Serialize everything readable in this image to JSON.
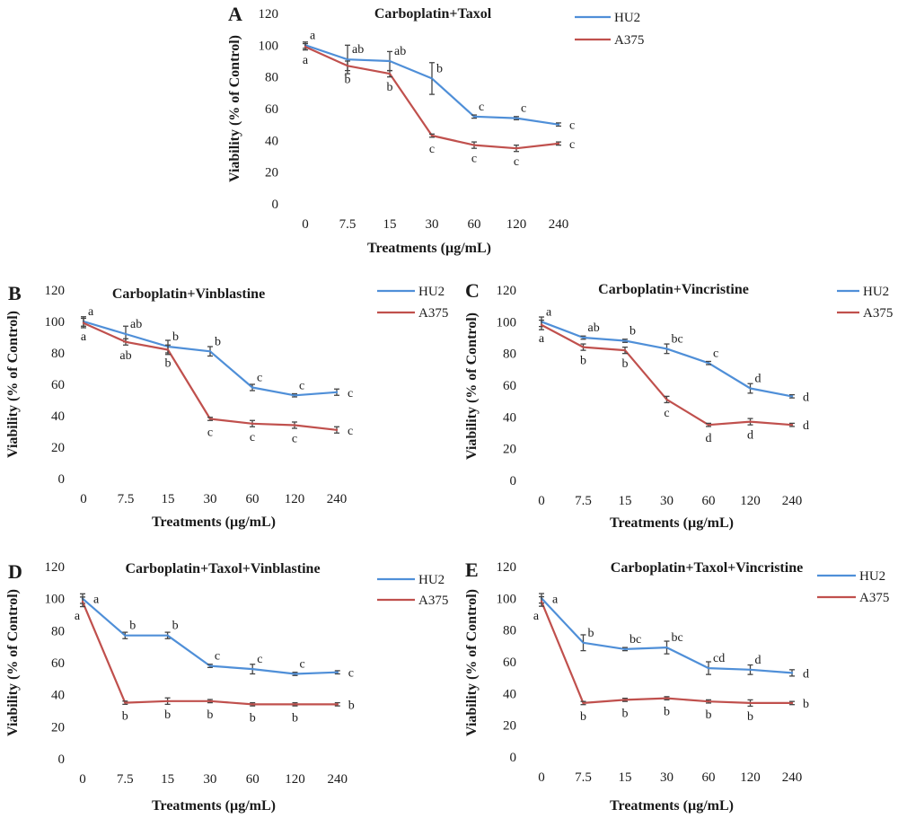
{
  "chart_data": [
    {
      "panel": "A",
      "type": "line",
      "title": "Carboplatin+Taxol",
      "xlabel": "Treatments (µg/mL)",
      "ylabel": "Viability (% of Control)",
      "categories": [
        "0",
        "7.5",
        "15",
        "30",
        "60",
        "120",
        "240"
      ],
      "ylim": [
        0,
        120
      ],
      "yticks": [
        0,
        20,
        40,
        60,
        80,
        100,
        120
      ],
      "grid": false,
      "legend": "top-right",
      "series": [
        {
          "name": "HU2",
          "color": "#4f8fd8",
          "values": [
            100,
            91,
            90,
            79,
            55,
            54,
            50
          ],
          "errors": [
            2,
            9,
            6,
            10,
            1,
            1,
            1
          ],
          "letters": [
            "a",
            "ab",
            "ab",
            "b",
            "c",
            "c",
            "c"
          ]
        },
        {
          "name": "A375",
          "color": "#c0504d",
          "values": [
            99,
            87,
            82,
            43,
            37,
            35,
            38
          ],
          "errors": [
            2,
            3,
            2,
            1,
            2,
            2,
            1
          ],
          "letters": [
            "a",
            "b",
            "b",
            "c",
            "c",
            "c",
            "c"
          ]
        }
      ]
    },
    {
      "panel": "B",
      "type": "line",
      "title": "Carboplatin+Vinblastine",
      "xlabel": "Treatments (µg/mL)",
      "ylabel": "Viability (% of Control)",
      "categories": [
        "0",
        "7.5",
        "15",
        "30",
        "60",
        "120",
        "240"
      ],
      "ylim": [
        0,
        120
      ],
      "yticks": [
        0,
        20,
        40,
        60,
        80,
        100,
        120
      ],
      "grid": false,
      "legend": "top-right",
      "series": [
        {
          "name": "HU2",
          "color": "#4f8fd8",
          "values": [
            100,
            92,
            84,
            81,
            58,
            53,
            55
          ],
          "errors": [
            3,
            5,
            4,
            3,
            2,
            1,
            2
          ],
          "letters": [
            "a",
            "ab",
            "b",
            "b",
            "c",
            "c",
            "c"
          ]
        },
        {
          "name": "A375",
          "color": "#c0504d",
          "values": [
            99,
            87,
            82,
            38,
            35,
            34,
            31
          ],
          "errors": [
            3,
            2,
            3,
            1,
            2,
            2,
            2
          ],
          "letters": [
            "a",
            "ab",
            "b",
            "c",
            "c",
            "c",
            "c"
          ]
        }
      ]
    },
    {
      "panel": "C",
      "type": "line",
      "title": "Carboplatin+Vincristine",
      "xlabel": "Treatments (µg/mL)",
      "ylabel": "Viability (% of Control)",
      "categories": [
        "0",
        "7.5",
        "15",
        "30",
        "60",
        "120",
        "240"
      ],
      "ylim": [
        0,
        120
      ],
      "yticks": [
        0,
        20,
        40,
        60,
        80,
        100,
        120
      ],
      "grid": false,
      "legend": "top-right",
      "series": [
        {
          "name": "HU2",
          "color": "#4f8fd8",
          "values": [
            100,
            90,
            88,
            83,
            74,
            58,
            53
          ],
          "errors": [
            3,
            1,
            1,
            3,
            1,
            3,
            1
          ],
          "letters": [
            "a",
            "ab",
            "b",
            "bc",
            "c",
            "d",
            "d"
          ]
        },
        {
          "name": "A375",
          "color": "#c0504d",
          "values": [
            98,
            84,
            82,
            51,
            35,
            37,
            35
          ],
          "errors": [
            3,
            2,
            2,
            2,
            1,
            2,
            1
          ],
          "letters": [
            "a",
            "b",
            "b",
            "c",
            "d",
            "d",
            "d"
          ]
        }
      ]
    },
    {
      "panel": "D",
      "type": "line",
      "title": "Carboplatin+Taxol+Vinblastine",
      "xlabel": "Treatments (µg/mL)",
      "ylabel": "Viability (% of Control)",
      "categories": [
        "0",
        "7.5",
        "15",
        "30",
        "60",
        "120",
        "240"
      ],
      "ylim": [
        0,
        120
      ],
      "yticks": [
        0,
        20,
        40,
        60,
        80,
        100,
        120
      ],
      "grid": false,
      "legend": "top-right",
      "series": [
        {
          "name": "HU2",
          "color": "#4f8fd8",
          "values": [
            100,
            77,
            77,
            58,
            56,
            53,
            54
          ],
          "errors": [
            3,
            2,
            2,
            1,
            3,
            1,
            1
          ],
          "letters": [
            "a",
            "b",
            "b",
            "c",
            "c",
            "c",
            "c"
          ]
        },
        {
          "name": "A375",
          "color": "#c0504d",
          "values": [
            98,
            35,
            36,
            36,
            34,
            34,
            34
          ],
          "errors": [
            3,
            1,
            2,
            1,
            1,
            1,
            1
          ],
          "letters": [
            "a",
            "b",
            "b",
            "b",
            "b",
            "b",
            "b"
          ]
        }
      ]
    },
    {
      "panel": "E",
      "type": "line",
      "title": "Carboplatin+Taxol+Vincristine",
      "xlabel": "Treatments (µg/mL)",
      "ylabel": "Viability (% of Control)",
      "categories": [
        "0",
        "7.5",
        "15",
        "30",
        "60",
        "120",
        "240"
      ],
      "ylim": [
        0,
        120
      ],
      "yticks": [
        0,
        20,
        40,
        60,
        80,
        100,
        120
      ],
      "grid": false,
      "legend": "top-right",
      "series": [
        {
          "name": "HU2",
          "color": "#4f8fd8",
          "values": [
            100,
            72,
            68,
            69,
            56,
            55,
            53
          ],
          "errors": [
            3,
            5,
            1,
            4,
            4,
            3,
            2
          ],
          "letters": [
            "a",
            "b",
            "bc",
            "bc",
            "cd",
            "d",
            "d"
          ]
        },
        {
          "name": "A375",
          "color": "#c0504d",
          "values": [
            98,
            34,
            36,
            37,
            35,
            34,
            34
          ],
          "errors": [
            3,
            1,
            1,
            1,
            1,
            2,
            1
          ],
          "letters": [
            "a",
            "b",
            "b",
            "b",
            "b",
            "b",
            "b"
          ]
        }
      ]
    }
  ]
}
